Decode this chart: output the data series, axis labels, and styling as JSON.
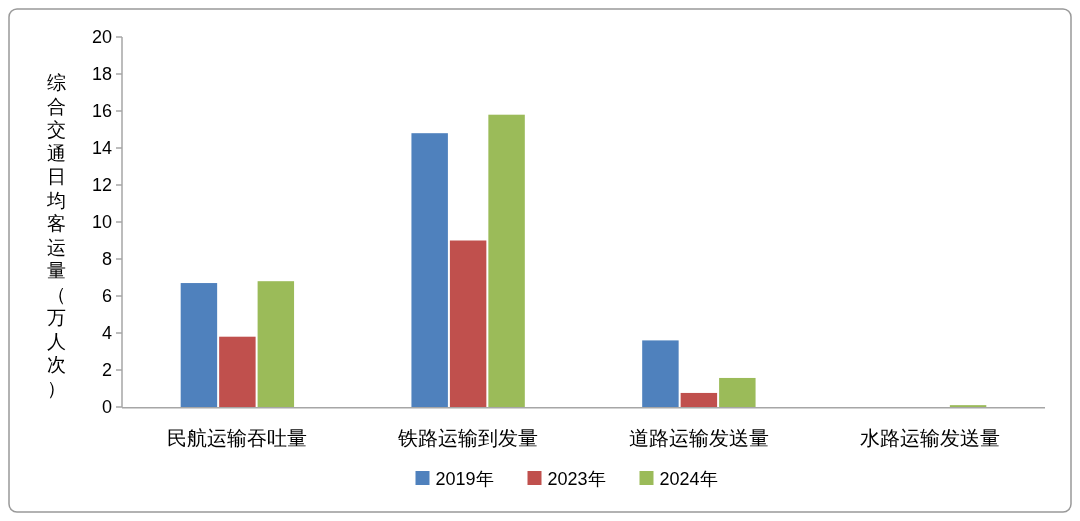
{
  "chart_data": {
    "type": "bar",
    "ylabel": "综合交通日均客运量（万人次）",
    "categories": [
      "民航运输吞吐量",
      "铁路运输到发量",
      "道路运输发送量",
      "水路运输发送量"
    ],
    "series": [
      {
        "name": "2019年",
        "color": "#4f81bd",
        "values": [
          6.7,
          14.8,
          3.6,
          null
        ]
      },
      {
        "name": "2023年",
        "color": "#c0504d",
        "values": [
          3.8,
          9.0,
          0.76,
          null
        ]
      },
      {
        "name": "2024年",
        "color": "#9bbb59",
        "values": [
          6.8,
          15.8,
          1.57,
          0.1
        ]
      }
    ],
    "ylim": [
      0,
      20
    ],
    "yticks": [
      0,
      2,
      4,
      6,
      8,
      10,
      12,
      14,
      16,
      18,
      20
    ],
    "grid": false,
    "legend": "bottom"
  }
}
